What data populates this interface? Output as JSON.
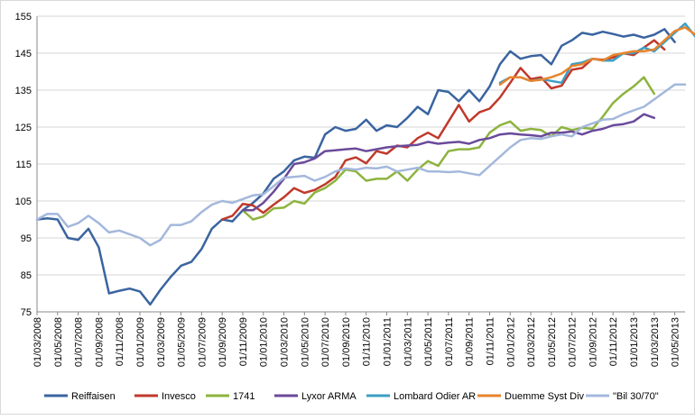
{
  "chart_data": {
    "type": "line",
    "title": "",
    "xlabel": "",
    "ylabel": "",
    "ylim": [
      75,
      155
    ],
    "y_ticks": [
      75,
      85,
      95,
      105,
      115,
      125,
      135,
      145,
      155
    ],
    "grid": "horizontal",
    "legend_position": "bottom",
    "x_tick_labels": [
      "01/03/2008",
      "01/05/2008",
      "01/07/2008",
      "01/09/2008",
      "01/11/2008",
      "01/01/2009",
      "01/03/2009",
      "01/05/2009",
      "01/07/2009",
      "01/09/2009",
      "01/11/2009",
      "01/01/2010",
      "01/03/2010",
      "01/05/2010",
      "01/07/2010",
      "01/09/2010",
      "01/11/2010",
      "01/01/2011",
      "01/03/2011",
      "01/05/2011",
      "01/07/2011",
      "01/09/2011",
      "01/11/2011",
      "01/01/2012",
      "01/03/2012",
      "01/05/2012",
      "01/07/2012",
      "01/09/2012",
      "01/11/2012",
      "01/01/2013",
      "01/03/2013",
      "01/05/2013"
    ],
    "series": [
      {
        "name": "Reiffaisen",
        "color": "#3a64a0",
        "start": "2008-03",
        "values": [
          100,
          100.3,
          100,
          95,
          94.5,
          97.5,
          92.5,
          80,
          80.7,
          81.3,
          80.5,
          77,
          81,
          84.5,
          87.5,
          88.5,
          92,
          97.5,
          100,
          99.5,
          102.5,
          104.5,
          107,
          111,
          113,
          116,
          117,
          116.7,
          123,
          125,
          124,
          124.5,
          127,
          124,
          125.5,
          125,
          127.5,
          130.5,
          128.5,
          135,
          134.5,
          132,
          135,
          132,
          136,
          142,
          145.5,
          143.5,
          144.2,
          144.5,
          142,
          147,
          148.5,
          150.5,
          150,
          150.8,
          150.2,
          149.5,
          150,
          149.2,
          150,
          151.5,
          148
        ]
      },
      {
        "name": "Invesco",
        "start": "2009-09",
        "color": "#c0392b",
        "values": [
          100,
          101,
          104.2,
          103.8,
          101.8,
          104,
          106,
          108.5,
          107.2,
          108,
          109.5,
          111.5,
          116,
          116.8,
          115.2,
          118.5,
          117.8,
          120,
          119.5,
          122,
          123.5,
          122,
          126.5,
          131,
          126.5,
          129,
          130,
          133,
          137,
          141,
          138,
          138.5,
          135.5,
          136.2,
          140.5,
          141,
          143.5,
          143.2,
          143.8,
          145,
          144.5,
          146.5,
          148.5,
          146
        ]
      },
      {
        "name": "1741",
        "start": "2009-11",
        "color": "#8db33f",
        "values": [
          102.5,
          100,
          100.8,
          103,
          103.2,
          105,
          104.3,
          107.3,
          108.5,
          110.5,
          113.5,
          113,
          110.5,
          111,
          111,
          113,
          110.5,
          113.5,
          115.8,
          114.5,
          118.5,
          119,
          119,
          119.5,
          123.5,
          125.5,
          126.5,
          124,
          124.5,
          124.2,
          122.5,
          125,
          124.2,
          124.8,
          124.5,
          127.8,
          131.5,
          134,
          136,
          138.5,
          134
        ]
      },
      {
        "name": "Lyxor ARMA",
        "start": "2009-11",
        "color": "#6a4a9a",
        "values": [
          102.5,
          102.5,
          104.5,
          107.5,
          111,
          115,
          115.5,
          116.5,
          118.5,
          118.7,
          119,
          119.2,
          118.5,
          119,
          119.5,
          119.8,
          120,
          120.2,
          121,
          120.5,
          120.8,
          121,
          120.5,
          121.5,
          122,
          123,
          123.3,
          123,
          122.8,
          122.5,
          123.5,
          123.5,
          123.8,
          123,
          124,
          124.5,
          125.5,
          125.8,
          126.5,
          128.5,
          127.5
        ]
      },
      {
        "name": "Lombard Odier AR",
        "start": "2011-12",
        "color": "#3d9fc4",
        "values": [
          137,
          138.5,
          138.5,
          137.5,
          138,
          137.5,
          137,
          142,
          142.5,
          143.5,
          143,
          143,
          145,
          145,
          146.5,
          145.5,
          148,
          150.5,
          153,
          149.5
        ]
      },
      {
        "name": "Duemme Syst Div",
        "start": "2011-12",
        "color": "#e8842c",
        "values": [
          136.5,
          138.5,
          138.5,
          137.5,
          137.8,
          138.5,
          139.5,
          141.5,
          142,
          143.5,
          143,
          144.5,
          145,
          145.5,
          145.5,
          146,
          148.5,
          151,
          152,
          150
        ]
      },
      {
        "name": "\"Bil 30/70\"",
        "start": "2008-03",
        "color": "#a4b8dc",
        "values": [
          100,
          101.5,
          101.5,
          98,
          99,
          101,
          99,
          96.5,
          97,
          96,
          95,
          93,
          94.5,
          98.5,
          98.5,
          99.5,
          102,
          104,
          105,
          104.5,
          105.5,
          106.5,
          106.8,
          109,
          111.3,
          111.5,
          111.8,
          110.5,
          111.5,
          113,
          113.8,
          113.5,
          114,
          113.8,
          114.3,
          113,
          113.5,
          114,
          113,
          113,
          112.8,
          113,
          112.5,
          112,
          114.5,
          117,
          119.5,
          121.5,
          122,
          121.8,
          122.5,
          123,
          122.5,
          125,
          126,
          127,
          127.2,
          128.5,
          129.5,
          130.5,
          132.5,
          134.5,
          136.5,
          136.5
        ]
      }
    ]
  }
}
